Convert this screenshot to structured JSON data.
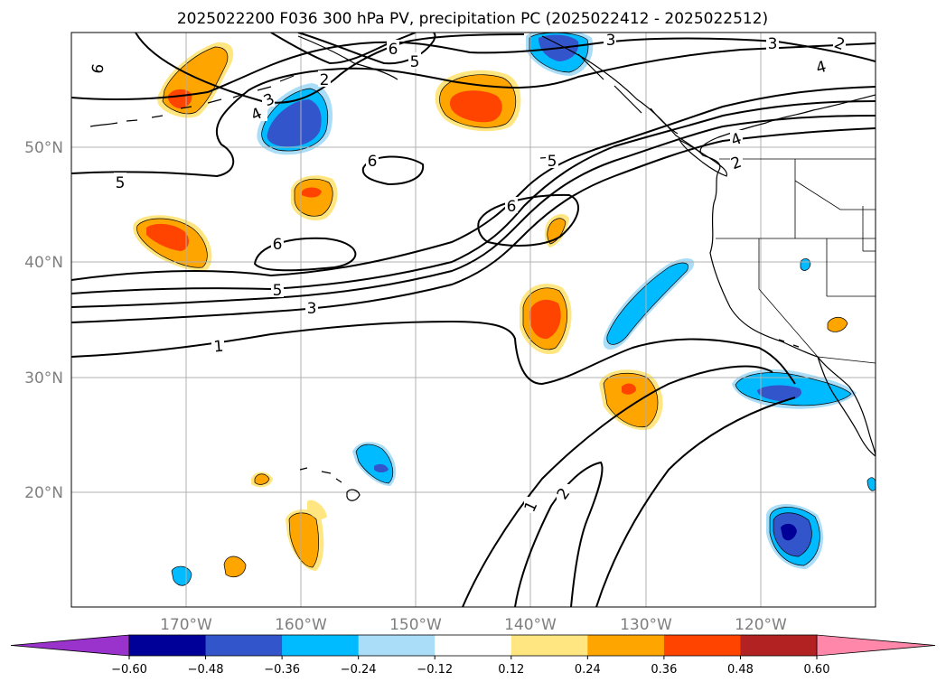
{
  "title": "2025022200 F036 300 hPa PV, precipitation PC (2025022412 - 2025022512)",
  "map": {
    "projection": "PlateCarree",
    "lon_range": [
      -178,
      -108
    ],
    "lat_range": [
      10,
      60
    ],
    "lon_ticks": [
      {
        "value": -170,
        "label": "170°W"
      },
      {
        "value": -160,
        "label": "160°W"
      },
      {
        "value": -150,
        "label": "150°W"
      },
      {
        "value": -140,
        "label": "140°W"
      },
      {
        "value": -130,
        "label": "130°W"
      },
      {
        "value": -120,
        "label": "120°W"
      }
    ],
    "lat_ticks": [
      {
        "value": 20,
        "label": "20°N"
      },
      {
        "value": 30,
        "label": "30°N"
      },
      {
        "value": 40,
        "label": "40°N"
      },
      {
        "value": 50,
        "label": "50°N"
      }
    ],
    "grid": true,
    "pv_contour_labels": [
      "1",
      "2",
      "3",
      "4",
      "5",
      "6"
    ],
    "colors": {
      "land_outline": "#000000",
      "gridline": "#b0b0b0",
      "axis_label": "#7f7f7f"
    }
  },
  "colorbar": {
    "extend": "both",
    "under_color": "#9933cc",
    "over_color": "#ff88aa",
    "bins": [
      "#000099",
      "#3355cc",
      "#00bbff",
      "#aaddf8",
      "#ffffff",
      "#ffe680",
      "#ffa500",
      "#ff4400",
      "#b22222"
    ],
    "ticks": [
      "−0.60",
      "−0.48",
      "−0.36",
      "−0.24",
      "−0.12",
      "0.12",
      "0.24",
      "0.36",
      "0.48",
      "0.60"
    ]
  }
}
